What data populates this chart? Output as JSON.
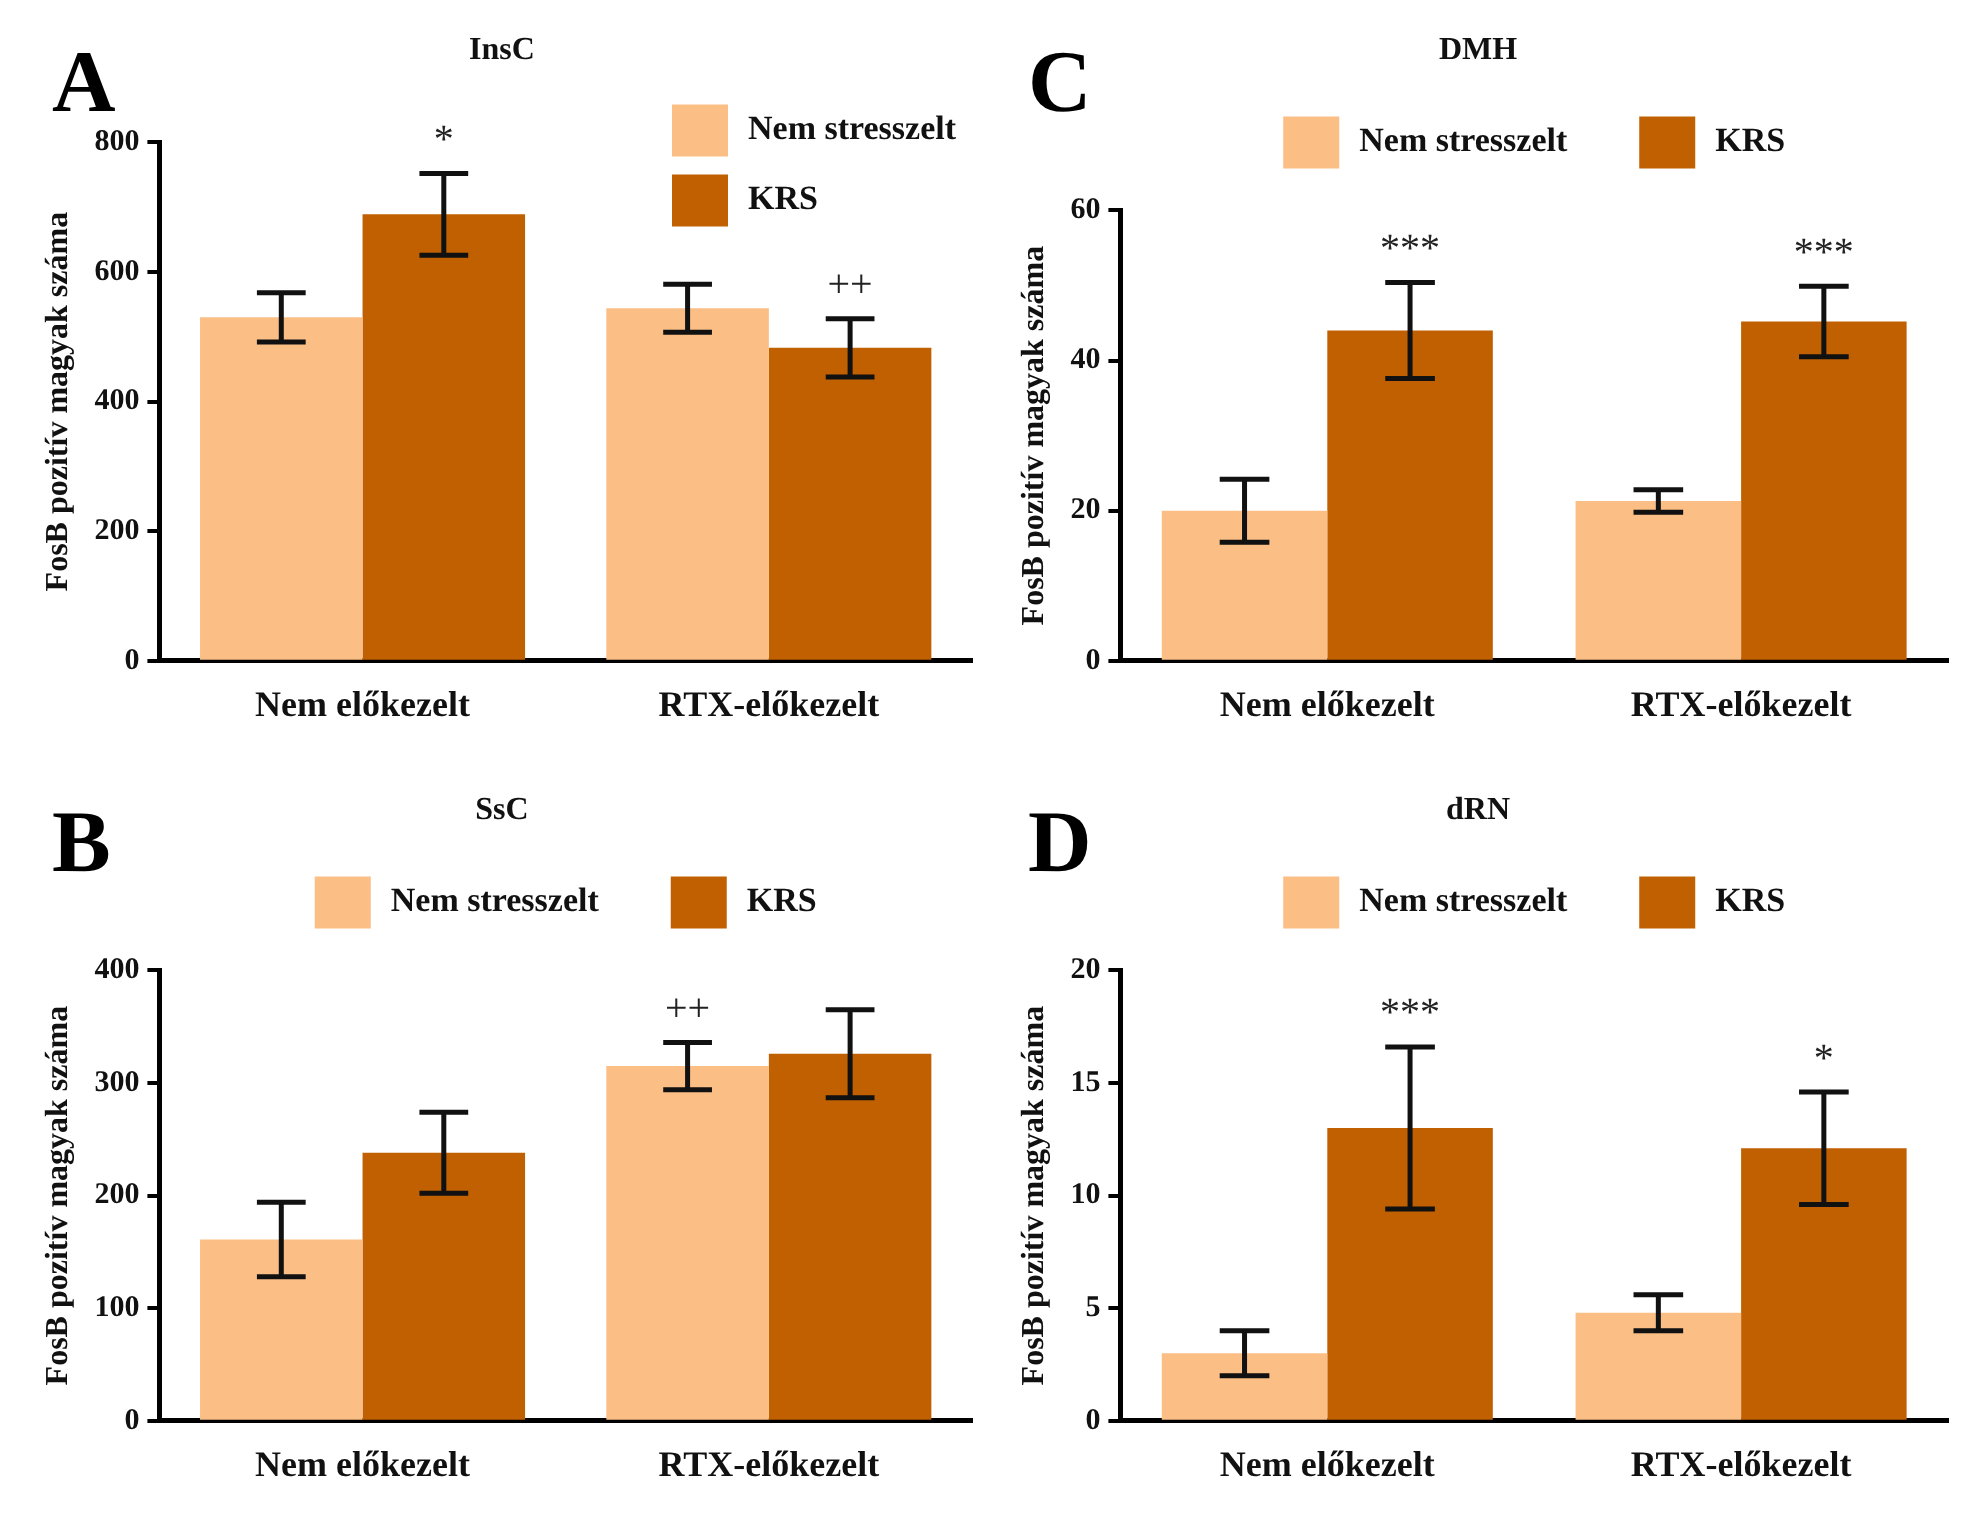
{
  "chart_data": [
    {
      "type": "bar",
      "title": "InsC",
      "ylabel": "FosB pozitív magyak száma",
      "annotations": [
        "A"
      ],
      "categories": [
        "Nem előkezelt",
        "RTX-előkezelt"
      ],
      "ylim": [
        0,
        800
      ],
      "yticks": [
        0,
        200,
        400,
        600,
        800
      ],
      "legend": "top right",
      "series": [
        {
          "name": "Nem stresszelt",
          "color": "#fbbe84",
          "values": [
            530,
            544
          ],
          "errors": [
            38,
            37
          ]
        },
        {
          "name": "KRS",
          "color": "#c06000",
          "values": [
            689,
            483
          ],
          "errors": [
            63,
            45
          ],
          "value_labels": [
            "*",
            "++"
          ]
        }
      ]
    },
    {
      "type": "bar",
      "title": "DMH",
      "ylabel": "FosB pozitív magyak száma",
      "annotations": [
        "C"
      ],
      "categories": [
        "Nem előkezelt",
        "RTX-előkezelt"
      ],
      "ylim": [
        0,
        60
      ],
      "yticks": [
        0,
        20,
        40,
        60
      ],
      "legend": "top",
      "series": [
        {
          "name": "Nem stresszelt",
          "color": "#fbbe84",
          "values": [
            20,
            21.3
          ],
          "errors": [
            4.2,
            1.5
          ]
        },
        {
          "name": "KRS",
          "color": "#c06000",
          "values": [
            44,
            45.2
          ],
          "errors": [
            6.4,
            4.7
          ],
          "value_labels": [
            "***",
            "***"
          ]
        }
      ]
    },
    {
      "type": "bar",
      "title": "SsC",
      "ylabel": "FosB pozitív magyak száma",
      "annotations": [
        "B"
      ],
      "categories": [
        "Nem előkezelt",
        "RTX-előkezelt"
      ],
      "ylim": [
        0,
        400
      ],
      "yticks": [
        0,
        100,
        200,
        300,
        400
      ],
      "legend": "top",
      "series": [
        {
          "name": "Nem stresszelt",
          "color": "#fbbe84",
          "values": [
            161,
            315
          ],
          "errors": [
            33,
            21
          ],
          "value_labels": [
            null,
            "++"
          ]
        },
        {
          "name": "KRS",
          "color": "#c06000",
          "values": [
            238,
            326
          ],
          "errors": [
            36,
            39
          ]
        }
      ]
    },
    {
      "type": "bar",
      "title": "dRN",
      "ylabel": "FosB pozitív magyak száma",
      "annotations": [
        "D"
      ],
      "categories": [
        "Nem előkezelt",
        "RTX-előkezelt"
      ],
      "ylim": [
        0,
        20
      ],
      "yticks": [
        0,
        5,
        10,
        15,
        20
      ],
      "legend": "top",
      "series": [
        {
          "name": "Nem stresszelt",
          "color": "#fbbe84",
          "values": [
            3,
            4.8
          ],
          "errors": [
            1,
            0.8
          ]
        },
        {
          "name": "KRS",
          "color": "#c06000",
          "values": [
            13,
            12.1
          ],
          "errors": [
            3.6,
            2.5
          ],
          "value_labels": [
            "***",
            "*"
          ]
        }
      ]
    }
  ]
}
